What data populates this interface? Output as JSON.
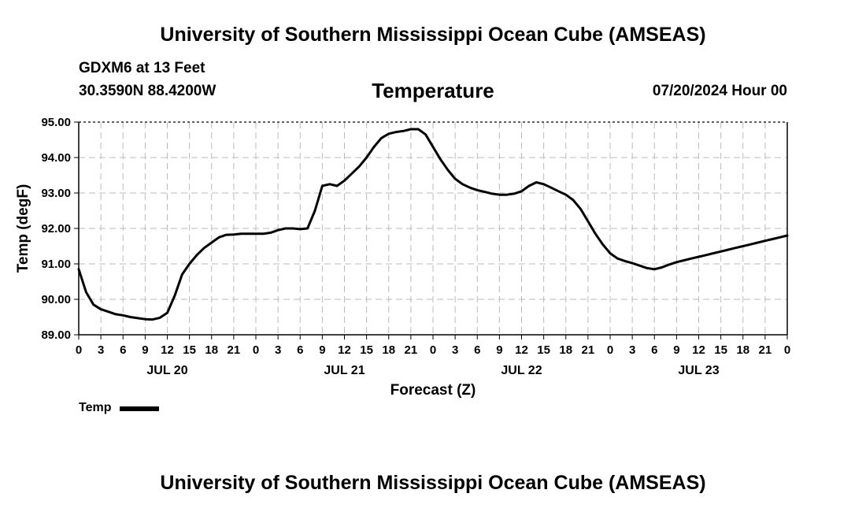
{
  "header": {
    "title": "University of Southern Mississippi Ocean Cube (AMSEAS)",
    "station": "GDXM6 at 13 Feet",
    "coords": "30.3590N  88.4200W",
    "datetime": "07/20/2024 Hour 00"
  },
  "footer": {
    "title": "University of Southern Mississippi Ocean Cube (AMSEAS)"
  },
  "chart_data": {
    "type": "line",
    "title": "Temperature",
    "xlabel": "Forecast (Z)",
    "ylabel": "Temp (degF)",
    "ylim": [
      89.0,
      95.0
    ],
    "yticks": [
      "89.00",
      "90.00",
      "91.00",
      "92.00",
      "93.00",
      "94.00",
      "95.00"
    ],
    "xlim": [
      0,
      96
    ],
    "x_tick_labels": [
      "0",
      "3",
      "6",
      "9",
      "12",
      "15",
      "18",
      "21",
      "0",
      "3",
      "6",
      "9",
      "12",
      "15",
      "18",
      "21",
      "0",
      "3",
      "6",
      "9",
      "12",
      "15",
      "18",
      "21",
      "0",
      "3",
      "6",
      "9",
      "12",
      "15",
      "18",
      "21",
      "0"
    ],
    "day_labels": [
      {
        "label": "JUL 20",
        "hour": 12
      },
      {
        "label": "JUL 21",
        "hour": 36
      },
      {
        "label": "JUL 22",
        "hour": 60
      },
      {
        "label": "JUL 23",
        "hour": 84
      }
    ],
    "grid": true,
    "legend": [
      {
        "name": "Temp",
        "color": "#000000"
      }
    ],
    "series": [
      {
        "name": "Temp",
        "x": [
          0,
          1,
          2,
          3,
          4,
          5,
          6,
          7,
          8,
          9,
          10,
          11,
          12,
          13,
          14,
          15,
          16,
          17,
          18,
          19,
          20,
          21,
          22,
          23,
          24,
          25,
          26,
          27,
          28,
          29,
          30,
          31,
          32,
          33,
          34,
          35,
          36,
          37,
          38,
          39,
          40,
          41,
          42,
          43,
          44,
          45,
          46,
          47,
          48,
          49,
          50,
          51,
          52,
          53,
          54,
          55,
          56,
          57,
          58,
          59,
          60,
          61,
          62,
          63,
          64,
          65,
          66,
          67,
          68,
          69,
          70,
          71,
          72,
          73,
          74,
          75,
          76,
          77,
          78,
          79,
          80,
          81,
          82,
          83,
          84,
          85,
          86,
          87,
          88,
          89,
          90,
          91,
          92,
          93,
          94,
          95,
          96
        ],
        "values": [
          90.85,
          90.2,
          89.85,
          89.72,
          89.65,
          89.58,
          89.55,
          89.5,
          89.47,
          89.44,
          89.43,
          89.48,
          89.62,
          90.1,
          90.7,
          91.0,
          91.25,
          91.45,
          91.6,
          91.75,
          91.82,
          91.83,
          91.85,
          91.85,
          91.85,
          91.85,
          91.88,
          91.95,
          92.0,
          92.0,
          91.98,
          92.0,
          92.5,
          93.2,
          93.25,
          93.2,
          93.35,
          93.55,
          93.75,
          94.0,
          94.3,
          94.55,
          94.67,
          94.72,
          94.75,
          94.8,
          94.8,
          94.65,
          94.3,
          93.95,
          93.65,
          93.4,
          93.25,
          93.15,
          93.08,
          93.03,
          92.98,
          92.95,
          92.95,
          92.98,
          93.05,
          93.2,
          93.3,
          93.25,
          93.15,
          93.05,
          92.95,
          92.8,
          92.55,
          92.2,
          91.85,
          91.55,
          91.3,
          91.15,
          91.08,
          91.02,
          90.95,
          90.88,
          90.85,
          90.9,
          90.98,
          91.05,
          91.1,
          91.15,
          91.2,
          91.25,
          91.3,
          91.35,
          91.4,
          91.45,
          91.5,
          91.55,
          91.6,
          91.65,
          91.7,
          91.75,
          91.8
        ]
      }
    ]
  }
}
